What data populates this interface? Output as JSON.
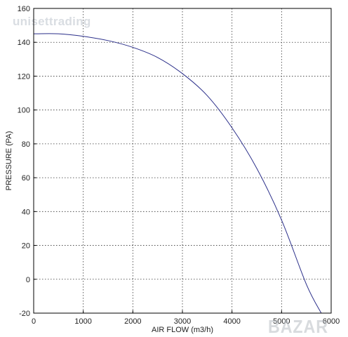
{
  "watermark_text": "unisettrading",
  "corner_logo_text": "BAZAR",
  "chart_data": {
    "type": "line",
    "xlabel": "AIR FLOW (m3/h)",
    "ylabel": "PRESSURE (PA)",
    "xlim": [
      0,
      6000
    ],
    "ylim": [
      -20,
      160
    ],
    "x_ticks": [
      0,
      1000,
      2000,
      3000,
      4000,
      5000,
      6000
    ],
    "y_ticks": [
      -20,
      0,
      20,
      40,
      60,
      80,
      100,
      120,
      140,
      160
    ],
    "grid": true,
    "line_color": "#2b2f8a",
    "series": [
      {
        "x": [
          0,
          500,
          1000,
          1500,
          2000,
          2500,
          3000,
          3500,
          4000,
          4500,
          5000,
          5500,
          5800
        ],
        "y": [
          145,
          145,
          143.5,
          141,
          137,
          131,
          121.5,
          108.5,
          89.5,
          65.5,
          35,
          -3,
          -20
        ]
      }
    ]
  }
}
